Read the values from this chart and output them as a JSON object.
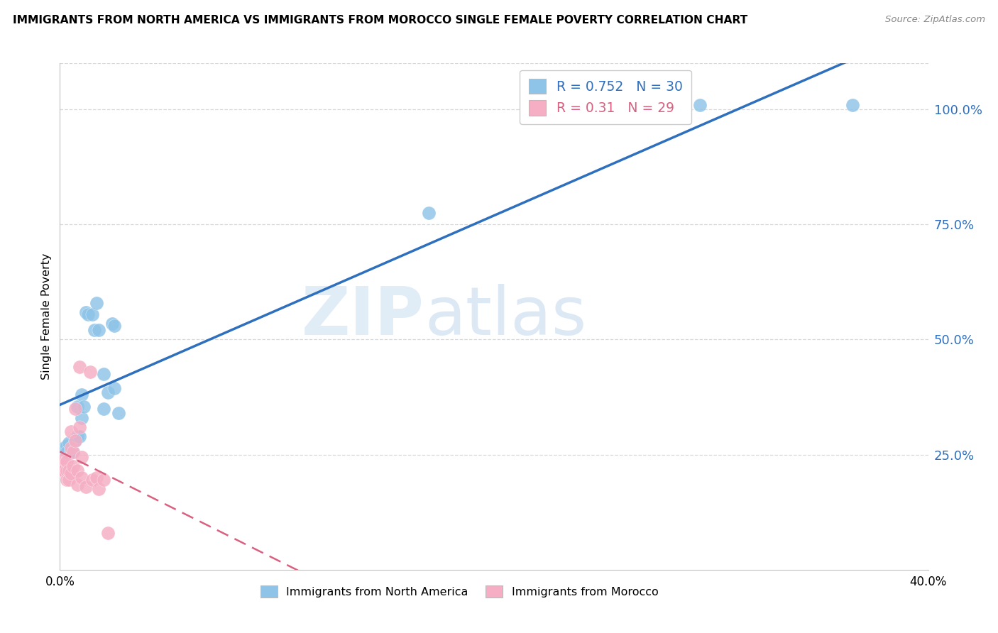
{
  "title": "IMMIGRANTS FROM NORTH AMERICA VS IMMIGRANTS FROM MOROCCO SINGLE FEMALE POVERTY CORRELATION CHART",
  "source": "Source: ZipAtlas.com",
  "ylabel": "Single Female Poverty",
  "xlim": [
    0.0,
    0.4
  ],
  "ylim": [
    0.0,
    1.1
  ],
  "yticks_right": [
    0.25,
    0.5,
    0.75,
    1.0
  ],
  "ytick_labels_right": [
    "25.0%",
    "50.0%",
    "75.0%",
    "100.0%"
  ],
  "blue_R": 0.752,
  "blue_N": 30,
  "pink_R": 0.31,
  "pink_N": 29,
  "blue_color": "#8ec4e8",
  "pink_color": "#f5aec4",
  "blue_line_color": "#2e6fbe",
  "pink_line_color": "#d96080",
  "legend_label_blue": "Immigrants from North America",
  "legend_label_pink": "Immigrants from Morocco",
  "watermark_zip": "ZIP",
  "watermark_atlas": "atlas",
  "blue_x": [
    0.002,
    0.003,
    0.003,
    0.004,
    0.005,
    0.005,
    0.006,
    0.007,
    0.008,
    0.008,
    0.009,
    0.01,
    0.01,
    0.011,
    0.012,
    0.013,
    0.015,
    0.016,
    0.017,
    0.018,
    0.02,
    0.02,
    0.022,
    0.024,
    0.025,
    0.025,
    0.027,
    0.17,
    0.295,
    0.365
  ],
  "blue_y": [
    0.265,
    0.27,
    0.255,
    0.275,
    0.26,
    0.255,
    0.255,
    0.28,
    0.355,
    0.29,
    0.29,
    0.38,
    0.33,
    0.355,
    0.56,
    0.555,
    0.555,
    0.52,
    0.58,
    0.52,
    0.35,
    0.425,
    0.385,
    0.535,
    0.395,
    0.53,
    0.34,
    0.775,
    1.01,
    1.01
  ],
  "pink_x": [
    0.001,
    0.001,
    0.002,
    0.002,
    0.003,
    0.003,
    0.003,
    0.004,
    0.004,
    0.005,
    0.005,
    0.005,
    0.006,
    0.006,
    0.007,
    0.007,
    0.008,
    0.008,
    0.009,
    0.009,
    0.01,
    0.01,
    0.012,
    0.014,
    0.015,
    0.017,
    0.018,
    0.02,
    0.022
  ],
  "pink_y": [
    0.215,
    0.225,
    0.215,
    0.24,
    0.195,
    0.215,
    0.235,
    0.195,
    0.215,
    0.21,
    0.265,
    0.3,
    0.225,
    0.255,
    0.35,
    0.28,
    0.185,
    0.215,
    0.44,
    0.31,
    0.2,
    0.245,
    0.18,
    0.43,
    0.195,
    0.2,
    0.175,
    0.195,
    0.08
  ]
}
